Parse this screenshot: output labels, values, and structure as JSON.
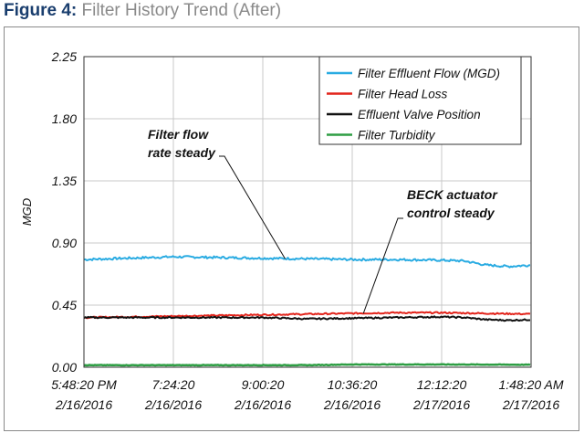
{
  "figure": {
    "label": "Figure 4:",
    "title": "Filter History Trend (After)"
  },
  "chart_data": {
    "type": "line",
    "ylabel": "MGD",
    "ylim": [
      0,
      2.25
    ],
    "yticks": [
      "2.25",
      "1.80",
      "1.35",
      "0.90",
      "0.45",
      "0.00"
    ],
    "ytick_values": [
      2.25,
      1.8,
      1.35,
      0.9,
      0.45,
      0.0
    ],
    "x_ticks": [
      {
        "time": "5:48:20 PM",
        "date": "2/16/2016"
      },
      {
        "time": "7:24:20",
        "date": "2/16/2016"
      },
      {
        "time": "9:00:20",
        "date": "2/16/2016"
      },
      {
        "time": "10:36:20",
        "date": "2/16/2016"
      },
      {
        "time": "12:12:20",
        "date": "2/17/2016"
      },
      {
        "time": "1:48:20 AM",
        "date": "2/17/2016"
      }
    ],
    "grid": true,
    "legend_position": "top-right",
    "series": [
      {
        "name": "Filter Effluent Flow (MGD)",
        "color": "#29abe2",
        "points": [
          [
            "5:48:20 PM",
            0.78
          ],
          [
            "6:36:20 PM",
            0.79
          ],
          [
            "7:24:20 PM",
            0.8
          ],
          [
            "8:12:20 PM",
            0.795
          ],
          [
            "9:00:20 PM",
            0.79
          ],
          [
            "9:48:20 PM",
            0.785
          ],
          [
            "10:36:20 PM",
            0.78
          ],
          [
            "11:24:20 PM",
            0.78
          ],
          [
            "12:12:20 AM",
            0.775
          ],
          [
            "12:36:20 AM",
            0.77
          ],
          [
            "1:00:20 AM",
            0.74
          ],
          [
            "1:24:20 AM",
            0.73
          ],
          [
            "1:48:20 AM",
            0.74
          ]
        ]
      },
      {
        "name": "Filter Head Loss",
        "color": "#e2231a",
        "points": [
          [
            "5:48:20 PM",
            0.36
          ],
          [
            "6:36:20 PM",
            0.365
          ],
          [
            "7:24:20 PM",
            0.37
          ],
          [
            "8:12:20 PM",
            0.375
          ],
          [
            "9:00:20 PM",
            0.38
          ],
          [
            "9:48:20 PM",
            0.385
          ],
          [
            "10:36:20 PM",
            0.39
          ],
          [
            "11:24:20 PM",
            0.395
          ],
          [
            "12:12:20 AM",
            0.395
          ],
          [
            "1:00:20 AM",
            0.39
          ],
          [
            "1:48:20 AM",
            0.385
          ]
        ]
      },
      {
        "name": "Effluent Valve Position",
        "color": "#111111",
        "points": [
          [
            "5:48:20 PM",
            0.36
          ],
          [
            "6:36:20 PM",
            0.36
          ],
          [
            "7:24:20 PM",
            0.36
          ],
          [
            "8:12:20 PM",
            0.36
          ],
          [
            "9:00:20 PM",
            0.36
          ],
          [
            "9:48:20 PM",
            0.35
          ],
          [
            "10:36:20 PM",
            0.355
          ],
          [
            "11:24:20 PM",
            0.36
          ],
          [
            "12:12:20 AM",
            0.365
          ],
          [
            "12:36:20 AM",
            0.36
          ],
          [
            "1:00:20 AM",
            0.345
          ],
          [
            "1:24:20 AM",
            0.34
          ],
          [
            "1:48:20 AM",
            0.345
          ]
        ]
      },
      {
        "name": "Filter Turbidity",
        "color": "#2e9e44",
        "points": [
          [
            "5:48:20 PM",
            0.015
          ],
          [
            "9:48:20 PM",
            0.015
          ],
          [
            "10:36:20 PM",
            0.02
          ],
          [
            "12:12:20 AM",
            0.02
          ],
          [
            "1:48:20 AM",
            0.018
          ]
        ]
      }
    ],
    "annotations": [
      {
        "lines": [
          "Filter flow",
          "rate steady"
        ],
        "target": [
          "9:24:20 PM",
          0.785
        ]
      },
      {
        "lines": [
          "BECK actuator",
          "control steady"
        ],
        "target": [
          "10:48:20 PM",
          0.39
        ]
      }
    ]
  }
}
